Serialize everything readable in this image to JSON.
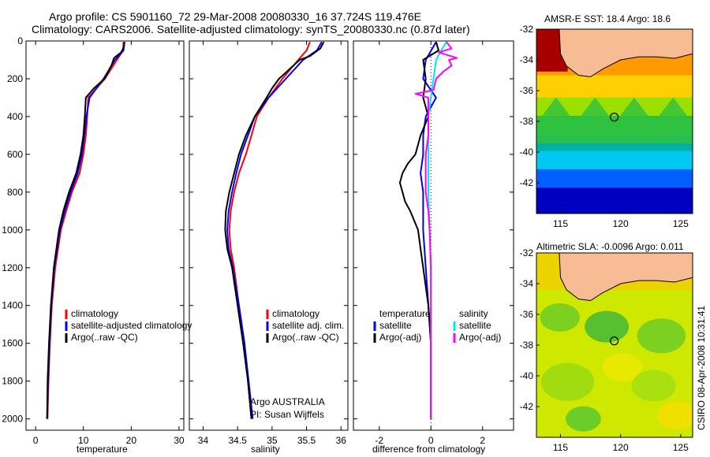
{
  "title_line1": "Argo profile: CS 5901160_72 29-Mar-2008 20080330_16 37.724S 119.476E",
  "title_line2": "Climatology: CARS2006. Satellite-adjusted climatology: synTS_20080330.nc (0.87d later)",
  "credit": "CSIRO 08-Apr-2008 10:31:41",
  "float_info": [
    "Argo AUSTRALIA",
    "PI: Susan Wijffels"
  ],
  "colors": {
    "climatology": "#ff0000",
    "satellite": "#0000ff",
    "argo": "#000000",
    "sal_satellite": "#00e5ff",
    "sal_argo": "#ff00ff",
    "land": "#f8bc94"
  },
  "chart_data": [
    {
      "type": "line",
      "xlabel": "temperature",
      "xlim": [
        -2,
        31
      ],
      "xticks": [
        0,
        10,
        20,
        30
      ],
      "ylim": [
        0,
        2060
      ],
      "yticks": [
        0,
        200,
        400,
        600,
        800,
        1000,
        1200,
        1400,
        1600,
        1800,
        2000
      ],
      "legend": [
        "climatology",
        "satellite-adjusted climatology",
        "Argo(..raw -QC)"
      ],
      "series": [
        {
          "name": "climatology",
          "depth": [
            5,
            50,
            100,
            200,
            300,
            400,
            500,
            600,
            700,
            800,
            900,
            1000,
            1200,
            1400,
            1600,
            1800,
            2000
          ],
          "values": [
            18.4,
            18.3,
            17.0,
            14.5,
            11.0,
            10.8,
            10.5,
            10.0,
            9.2,
            7.6,
            6.4,
            5.3,
            4.1,
            3.4,
            3.0,
            2.7,
            2.5
          ]
        },
        {
          "name": "satellite-adjusted climatology",
          "depth": [
            5,
            50,
            100,
            200,
            300,
            400,
            500,
            600,
            700,
            800,
            900,
            1000,
            1200,
            1400,
            1600,
            1800,
            2000
          ],
          "values": [
            18.6,
            18.4,
            16.6,
            14.2,
            11.3,
            10.6,
            10.2,
            9.7,
            8.8,
            7.3,
            6.1,
            5.1,
            3.9,
            3.3,
            2.9,
            2.6,
            2.4
          ]
        },
        {
          "name": "Argo(..raw -QC)",
          "depth": [
            5,
            30,
            60,
            90,
            120,
            160,
            200,
            250,
            300,
            400,
            500,
            600,
            700,
            800,
            900,
            1000,
            1200,
            1400,
            1600,
            1800,
            2000
          ],
          "values": [
            18.6,
            18.5,
            17.9,
            16.4,
            16.0,
            15.3,
            14.4,
            12.2,
            10.5,
            10.3,
            10.0,
            9.4,
            8.5,
            7.0,
            5.8,
            4.9,
            3.8,
            3.2,
            2.8,
            2.5,
            2.4
          ]
        }
      ]
    },
    {
      "type": "line",
      "xlabel": "salinity",
      "xlim": [
        33.8,
        36.1
      ],
      "xticks": [
        34,
        34.5,
        35,
        35.5,
        36
      ],
      "ylim": [
        0,
        2060
      ],
      "yticks": [
        0,
        200,
        400,
        600,
        800,
        1000,
        1200,
        1400,
        1600,
        1800,
        2000
      ],
      "legend": [
        "climatology",
        "satellite adj. clim.",
        "Argo(..raw -QC)"
      ],
      "series": [
        {
          "name": "climatology",
          "depth": [
            5,
            50,
            100,
            200,
            300,
            400,
            500,
            600,
            700,
            800,
            900,
            1000,
            1100,
            1200,
            1400,
            1600,
            1800,
            2000
          ],
          "values": [
            35.55,
            35.5,
            35.38,
            35.15,
            34.95,
            34.78,
            34.7,
            34.62,
            34.52,
            34.45,
            34.4,
            34.38,
            34.4,
            34.45,
            34.52,
            34.6,
            34.65,
            34.7
          ]
        },
        {
          "name": "satellite adj. clim.",
          "depth": [
            5,
            50,
            100,
            200,
            300,
            400,
            500,
            600,
            700,
            800,
            900,
            1000,
            1100,
            1200,
            1400,
            1600,
            1800,
            2000
          ],
          "values": [
            35.72,
            35.65,
            35.45,
            35.2,
            34.95,
            34.75,
            34.65,
            34.55,
            34.48,
            34.42,
            34.37,
            34.35,
            34.37,
            34.43,
            34.52,
            34.6,
            34.66,
            34.72
          ]
        },
        {
          "name": "Argo(..raw -QC)",
          "depth": [
            5,
            40,
            80,
            100,
            150,
            200,
            250,
            300,
            400,
            500,
            600,
            700,
            800,
            900,
            1000,
            1100,
            1200,
            1400,
            1600,
            1800,
            2000
          ],
          "values": [
            35.75,
            35.7,
            35.55,
            35.4,
            35.25,
            35.1,
            35.0,
            34.92,
            34.75,
            34.62,
            34.52,
            34.45,
            34.38,
            34.33,
            34.32,
            34.35,
            34.42,
            34.5,
            34.58,
            34.65,
            34.7
          ]
        }
      ]
    },
    {
      "type": "line",
      "xlabel": "difference from climatology",
      "xlim": [
        -3,
        3.2
      ],
      "xticks": [
        -2,
        0,
        2
      ],
      "ylim": [
        0,
        2060
      ],
      "yticks": [
        0,
        200,
        400,
        600,
        800,
        1000,
        1200,
        1400,
        1600,
        1800,
        2000
      ],
      "legend_headers": [
        "temperature",
        "salinity"
      ],
      "legend": [
        "satellite",
        "Argo(-adj)",
        "satellite",
        "Argo(-adj)"
      ],
      "series": [
        {
          "name": "satellite",
          "variable": "temperature",
          "depth": [
            5,
            100,
            200,
            300,
            400,
            500,
            600,
            700,
            800,
            900,
            1000,
            1200,
            1400,
            1600,
            1800,
            2000
          ],
          "values": [
            0.2,
            -0.2,
            -0.3,
            0.2,
            -0.2,
            -0.3,
            -0.3,
            -0.4,
            -0.3,
            -0.3,
            -0.3,
            -0.2,
            -0.1,
            0.0,
            0.0,
            0.0
          ]
        },
        {
          "name": "Argo(-adj)",
          "variable": "temperature",
          "depth": [
            5,
            50,
            100,
            200,
            300,
            400,
            500,
            600,
            650,
            700,
            750,
            800,
            850,
            900,
            1000,
            1100,
            1200,
            1300,
            1400,
            1600,
            1800,
            2000
          ],
          "values": [
            0.2,
            0.3,
            -0.3,
            -0.2,
            -0.3,
            -0.1,
            -0.4,
            -0.6,
            -0.9,
            -1.1,
            -1.2,
            -1.1,
            -1.0,
            -0.8,
            -0.5,
            -0.4,
            -0.3,
            -0.2,
            -0.1,
            0.0,
            0.0,
            0.0
          ]
        },
        {
          "name": "satellite",
          "variable": "salinity",
          "depth": [
            5,
            50,
            100,
            200,
            300,
            400,
            500,
            600,
            800,
            1000,
            1200,
            1400,
            1600,
            1800,
            2000
          ],
          "values": [
            0.6,
            0.4,
            0.2,
            0.1,
            0.0,
            -0.1,
            -0.1,
            -0.1,
            -0.1,
            -0.05,
            0.0,
            0.0,
            0.0,
            0.0,
            0.0
          ]
        },
        {
          "name": "Argo(-adj)",
          "variable": "salinity",
          "depth": [
            5,
            40,
            60,
            90,
            100,
            130,
            160,
            200,
            260,
            280,
            300,
            400,
            500,
            600,
            700,
            800,
            900,
            1000,
            1200,
            1400,
            1600,
            1800,
            2000
          ],
          "values": [
            0.6,
            0.8,
            0.3,
            1.0,
            0.7,
            0.8,
            0.5,
            0.2,
            0.1,
            -0.6,
            -0.1,
            -0.1,
            -0.1,
            -0.2,
            -0.2,
            -0.2,
            -0.1,
            -0.05,
            0.0,
            0.0,
            0.0,
            0.0,
            0.0
          ]
        }
      ]
    },
    {
      "type": "heatmap",
      "title": "AMSR-E SST: 18.4 Argo: 18.6",
      "xlim": [
        113,
        126
      ],
      "ylim": [
        -44,
        -32
      ],
      "xticks": [
        115,
        120,
        125
      ],
      "yticks": [
        -32,
        -34,
        -36,
        -38,
        -40,
        -42
      ],
      "argo_position": [
        119.476,
        -37.724
      ]
    },
    {
      "type": "heatmap",
      "title": "Altimetric SLA: -0.0096 Argo: 0.011",
      "xlim": [
        113,
        126
      ],
      "ylim": [
        -44,
        -32
      ],
      "xticks": [
        115,
        120,
        125
      ],
      "yticks": [
        -32,
        -34,
        -36,
        -38,
        -40,
        -42
      ],
      "argo_position": [
        119.476,
        -37.724
      ]
    }
  ]
}
